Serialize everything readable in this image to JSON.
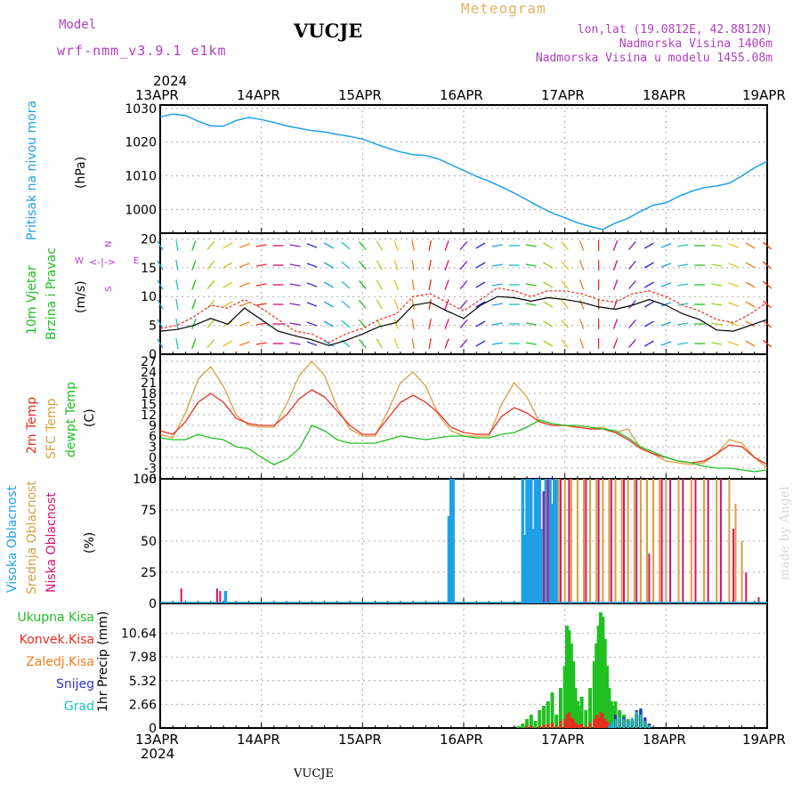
{
  "header": {
    "model_label": "Model",
    "model_name": "wrf-nmm_v3.9.1  e1km",
    "station": "VUCJE",
    "product": "Meteogram",
    "location": "lon,lat (19.0812E, 42.8812N)",
    "altitude": "Nadmorska Visina 1406m",
    "model_altitude": "Nadmorska Visina u modelu 1455.08m",
    "year": "2024",
    "footer_station": "VUCJE",
    "credit": "made by Angel"
  },
  "colors": {
    "pressure": "#1ea0e6",
    "wind_speed": "#000000",
    "gust": "#e83020",
    "t2m": "#e83020",
    "tsfc": "#d8a040",
    "dewpt": "#20c020",
    "cloud_high": "#1ea0e6",
    "cloud_mid": "#d8a040",
    "cloud_low": "#d81070",
    "precip_total": "#20c020",
    "precip_conv": "#e83020",
    "precip_frozen": "#f08020",
    "precip_snow": "#3030d0",
    "precip_hail": "#20c0c0",
    "purple_text": "#b040c0",
    "orange_text": "#e8b060"
  },
  "x_axis": {
    "top_labels": [
      "13APR",
      "14APR",
      "15APR",
      "16APR",
      "17APR",
      "18APR",
      "19APR"
    ],
    "bottom_labels": [
      "13APR",
      "14APR",
      "15APR",
      "16APR",
      "17APR",
      "18APR",
      "19APR"
    ],
    "start_hour": 0,
    "end_hour": 144
  },
  "chart_data": [
    {
      "type": "line",
      "panel": "pressure",
      "y_title": "Pritisak na nivou mora",
      "y_unit": "(hPa)",
      "ylim": [
        993,
        1031
      ],
      "y_ticks": [
        1000,
        1010,
        1020,
        1030
      ],
      "x_hours": [
        0,
        3,
        6,
        9,
        12,
        15,
        18,
        21,
        24,
        27,
        30,
        33,
        36,
        39,
        42,
        45,
        48,
        51,
        54,
        57,
        60,
        63,
        66,
        69,
        72,
        75,
        78,
        81,
        84,
        87,
        90,
        93,
        96,
        99,
        102,
        105,
        108,
        111,
        114,
        117,
        120,
        123,
        126,
        129,
        132,
        135,
        138,
        141,
        144
      ],
      "series": [
        {
          "name": "SLP",
          "values": [
            1027.5,
            1028.3,
            1027.9,
            1026.2,
            1024.8,
            1024.7,
            1026.4,
            1027.3,
            1026.7,
            1025.8,
            1024.8,
            1024.1,
            1023.4,
            1023.0,
            1022.3,
            1021.7,
            1020.9,
            1019.5,
            1018.2,
            1017.1,
            1016.3,
            1016.0,
            1015.0,
            1013.3,
            1011.6,
            1009.9,
            1008.4,
            1006.7,
            1004.9,
            1002.9,
            1000.8,
            999.0,
            997.6,
            996.1,
            995.0,
            994.1,
            996.0,
            997.4,
            999.5,
            1001.3,
            1002.0,
            1003.9,
            1005.4,
            1006.5,
            1007.0,
            1007.8,
            1010.0,
            1012.4,
            1014.3
          ]
        }
      ]
    },
    {
      "type": "line",
      "panel": "wind",
      "y_title_1": "10m Vjetar",
      "y_title_2": "Brzina i Pravac",
      "y_unit": "(m/s)",
      "compass": [
        "N",
        "E",
        "S",
        "W"
      ],
      "ylim": [
        0,
        21
      ],
      "y_ticks": [
        0,
        5,
        10,
        15,
        20
      ],
      "x_hours": [
        0,
        4,
        8,
        12,
        16,
        20,
        24,
        28,
        32,
        36,
        40,
        44,
        48,
        52,
        56,
        60,
        64,
        68,
        72,
        76,
        80,
        84,
        88,
        92,
        96,
        100,
        104,
        108,
        112,
        116,
        120,
        124,
        128,
        132,
        136,
        140,
        144
      ],
      "series": [
        {
          "name": "speed",
          "values": [
            4,
            4.3,
            5,
            6.2,
            5.2,
            8,
            6,
            4,
            3.2,
            2.5,
            1.5,
            2.4,
            3.5,
            4.8,
            5.5,
            8.5,
            9,
            7.5,
            6.2,
            8.5,
            10,
            9.8,
            9.2,
            9.8,
            9.5,
            9,
            8.2,
            7.8,
            8.5,
            9.5,
            8.5,
            7,
            6,
            4.2,
            4,
            5,
            6
          ]
        },
        {
          "name": "gust",
          "values": [
            4.5,
            5,
            6.5,
            8.5,
            8,
            9.5,
            8,
            6,
            4,
            3.5,
            2,
            3.5,
            4.5,
            6,
            7,
            10,
            10.5,
            9,
            7.5,
            9.5,
            11.5,
            11,
            10,
            11,
            11,
            10.5,
            9.5,
            9,
            10.5,
            11,
            10,
            8.5,
            7.5,
            6,
            5.5,
            7,
            9
          ]
        }
      ],
      "direction_deg": [
        150,
        170,
        200,
        220,
        240,
        250,
        260,
        270,
        280,
        290,
        300,
        310,
        320,
        330,
        340,
        350,
        10,
        20,
        40,
        60,
        80,
        90,
        100,
        120,
        140,
        160,
        180,
        200,
        220,
        240,
        250,
        260,
        270,
        280,
        290,
        300,
        310
      ]
    },
    {
      "type": "line",
      "panel": "temperature",
      "y_title_1": "2m Temp",
      "y_title_2": "SFC Temp",
      "y_title_3": "dewpt Temp",
      "y_unit": "(C)",
      "ylim": [
        -6,
        29
      ],
      "y_ticks": [
        -6,
        -3,
        0,
        3,
        6,
        9,
        12,
        15,
        18,
        21,
        24,
        27
      ],
      "x_hours": [
        0,
        3,
        6,
        9,
        12,
        15,
        18,
        21,
        24,
        27,
        30,
        33,
        36,
        39,
        42,
        45,
        48,
        51,
        54,
        57,
        60,
        63,
        66,
        69,
        72,
        75,
        78,
        81,
        84,
        87,
        90,
        93,
        96,
        99,
        102,
        105,
        108,
        111,
        114,
        117,
        120,
        123,
        126,
        129,
        132,
        135,
        138,
        141,
        144
      ],
      "series": [
        {
          "name": "2m Temp",
          "values": [
            7.5,
            6.5,
            10,
            15.5,
            18,
            15.5,
            11,
            9.5,
            9,
            9,
            12,
            16.5,
            19,
            17,
            13,
            9,
            6.5,
            6.5,
            11,
            15.5,
            17.5,
            15.5,
            12.5,
            8.5,
            7,
            6.5,
            6.5,
            11.5,
            14,
            12.5,
            10,
            9,
            9,
            8.5,
            8,
            8,
            7,
            5,
            2.5,
            1,
            0,
            -1,
            -1.5,
            -1,
            1,
            3.5,
            3,
            0,
            -2
          ]
        },
        {
          "name": "SFC Temp",
          "values": [
            6.5,
            5.5,
            12.5,
            22,
            25.5,
            20,
            12,
            9,
            8.5,
            8.5,
            15,
            23,
            27,
            23,
            14,
            8,
            6,
            6,
            13,
            21,
            24,
            20,
            12,
            7.5,
            6,
            6,
            6,
            15,
            21,
            17,
            10,
            9,
            9,
            8.5,
            8,
            8.5,
            7,
            8,
            2.5,
            1,
            -1,
            -1.5,
            -2,
            -1.5,
            1,
            5,
            4,
            0,
            -3
          ]
        },
        {
          "name": "dewpt Temp",
          "values": [
            5.5,
            5,
            5,
            6.5,
            5.5,
            5,
            3,
            2.5,
            0,
            -2,
            -0.5,
            2.5,
            9,
            7.5,
            5,
            4,
            4,
            4,
            5,
            6,
            5.5,
            5,
            5.5,
            6,
            6,
            5.5,
            5.5,
            6.5,
            7,
            8.5,
            10.5,
            9.5,
            9,
            9,
            8.5,
            8,
            7.5,
            5.5,
            3,
            1.5,
            0,
            -1,
            -1.5,
            -2.5,
            -3,
            -3,
            -3.5,
            -4,
            -3.5
          ]
        }
      ]
    },
    {
      "type": "bar",
      "panel": "clouds",
      "y_title_1": "Visoka Oblacnost",
      "y_title_2": "Srednja Oblacnost",
      "y_title_3": "Niska Oblacnost",
      "y_unit": "(%)",
      "ylim": [
        0,
        100
      ],
      "y_ticks": [
        0,
        25,
        50,
        75,
        100
      ],
      "series": [
        {
          "name": "Visoka Oblacnost",
          "x_hours": [
            15.5,
            68.5,
            69,
            69.5,
            86,
            86.5,
            87,
            87.5,
            88,
            88.5,
            89,
            89.5,
            90,
            90.5,
            91,
            91.5,
            92,
            92.5,
            93,
            93.5,
            94
          ],
          "values": [
            10,
            70,
            100,
            100,
            100,
            55,
            100,
            100,
            100,
            60,
            100,
            100,
            100,
            60,
            90,
            100,
            50,
            100,
            80,
            100,
            100
          ]
        },
        {
          "name": "Srednja Oblacnost",
          "x_hours": [
            94.5,
            96,
            97.5,
            99,
            100.5,
            102,
            103.5,
            105,
            106.5,
            108,
            109.5,
            111,
            112.5,
            114,
            115.5,
            117,
            118.5,
            120,
            123,
            126,
            129,
            132,
            135,
            136.5,
            138
          ],
          "values": [
            100,
            100,
            100,
            100,
            100,
            100,
            100,
            100,
            100,
            100,
            100,
            100,
            100,
            100,
            100,
            100,
            100,
            100,
            100,
            100,
            100,
            100,
            100,
            80,
            50
          ]
        },
        {
          "name": "Niska Oblacnost",
          "x_hours": [
            5,
            13.5,
            14.2,
            91,
            92,
            95,
            97,
            101,
            104,
            107,
            110,
            113,
            116,
            119,
            121,
            124,
            127,
            130,
            133,
            136,
            139,
            142
          ],
          "values": [
            12,
            12,
            10,
            90,
            100,
            100,
            100,
            100,
            100,
            100,
            100,
            100,
            40,
            100,
            100,
            100,
            100,
            100,
            100,
            60,
            25,
            5
          ]
        }
      ]
    },
    {
      "type": "bar",
      "panel": "precip",
      "y_title": "1hr Precip (mm)",
      "legend": [
        "Ukupna Kisa",
        "Konvek.Kisa",
        "Zaledj.Kisa",
        "Snijeg",
        "Grad"
      ],
      "ylim": [
        0,
        14.0
      ],
      "y_ticks": [
        0,
        2.66,
        5.32,
        7.98,
        10.64
      ],
      "x_hours": [
        85,
        86,
        87,
        88,
        89,
        90,
        91,
        92,
        93,
        94,
        95,
        96,
        96.5,
        97,
        97.5,
        98,
        98.5,
        99,
        99.5,
        100,
        101,
        102,
        103,
        103.5,
        104,
        104.5,
        105,
        105.5,
        106,
        106.5,
        107,
        107.5,
        108,
        109,
        110,
        111,
        112,
        113,
        114,
        115,
        116
      ],
      "series": [
        {
          "name": "Ukupna Kisa",
          "values": [
            0.2,
            0.5,
            1.0,
            1.5,
            0.8,
            2.0,
            2.5,
            3.0,
            4.0,
            1.5,
            4.5,
            7.0,
            11.5,
            11.0,
            9.5,
            7.5,
            4.5,
            3.0,
            2.5,
            3.5,
            2.0,
            4.5,
            7.5,
            9.5,
            11.5,
            13.0,
            12.5,
            10.0,
            7.0,
            4.5,
            3.0,
            2.5,
            3.0,
            2.0,
            1.5,
            1.0,
            0.8,
            1.5,
            2.0,
            1.0,
            0.5
          ]
        },
        {
          "name": "Konvek.Kisa",
          "values": [
            0,
            0,
            0.2,
            0.3,
            0,
            0.2,
            0.4,
            0.5,
            0.6,
            0.3,
            0.8,
            1.0,
            1.5,
            1.8,
            1.2,
            1.0,
            0.6,
            0.4,
            0.3,
            0.5,
            0.2,
            0.6,
            1.0,
            1.5,
            1.2,
            1.8,
            1.6,
            1.0,
            0.8,
            0.5,
            0.4,
            0.2,
            0.3,
            0.2,
            0.1,
            0.1,
            0,
            0.2,
            0.1,
            0,
            0
          ]
        },
        {
          "name": "Snijeg",
          "values": [
            0,
            0,
            0,
            0,
            0,
            0,
            0,
            0,
            0,
            0,
            0,
            0,
            0,
            0,
            0,
            0,
            0,
            0,
            0,
            0,
            0,
            0,
            0,
            0,
            0,
            0,
            0,
            0,
            0,
            0.2,
            0.4,
            0.6,
            1.5,
            1.0,
            1.2,
            0.8,
            1.0,
            2.0,
            2.2,
            1.2,
            0.5
          ]
        },
        {
          "name": "Grad",
          "values": [
            0,
            0,
            0,
            0,
            0,
            0,
            0,
            0,
            0,
            0,
            0,
            0,
            0,
            0,
            0,
            0,
            0,
            0,
            0,
            0,
            0,
            0,
            0,
            0,
            0,
            0,
            0,
            0,
            0,
            0.3,
            0.5,
            0.8,
            1.0,
            1.2,
            1.0,
            0.8,
            1.2,
            1.8,
            1.5,
            0.8,
            0.3
          ]
        }
      ]
    }
  ]
}
